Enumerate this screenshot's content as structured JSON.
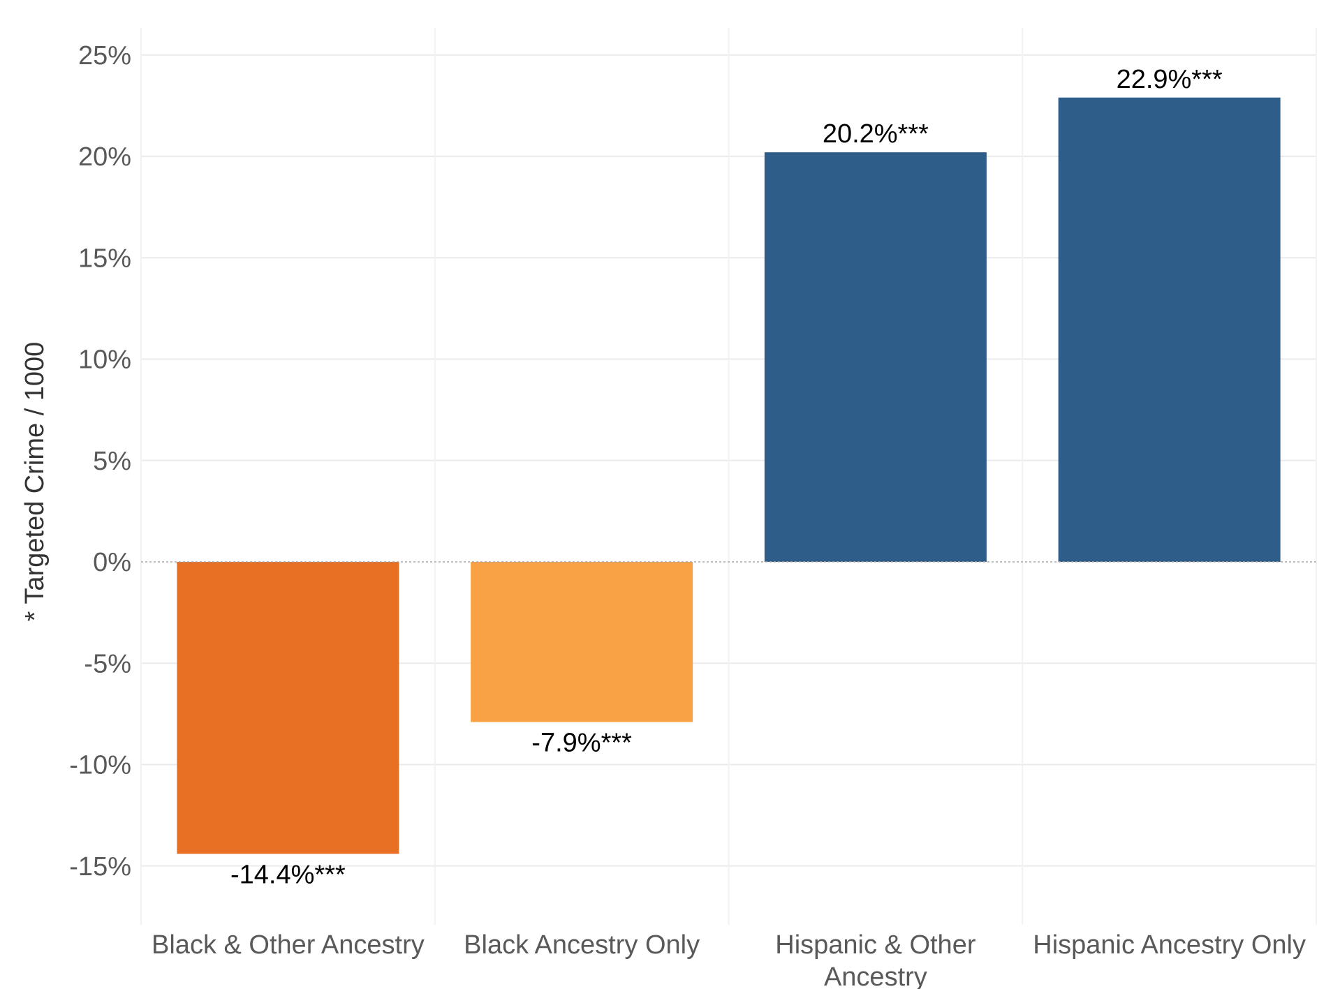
{
  "chart_data": {
    "type": "bar",
    "ylabel": "* Targeted Crime / 1000",
    "xlabel": "",
    "ylim": [
      -18,
      25
    ],
    "yticks": [
      -15,
      -10,
      -5,
      0,
      5,
      10,
      15,
      20,
      25
    ],
    "ytick_labels": [
      "-15%",
      "-10%",
      "-5%",
      "0%",
      "5%",
      "10%",
      "15%",
      "20%",
      "25%"
    ],
    "grid": true,
    "categories": [
      [
        "Black & Other Ancestry"
      ],
      [
        "Black Ancestry Only"
      ],
      [
        "Hispanic & Other",
        "Ancestry"
      ],
      [
        "Hispanic Ancestry Only"
      ]
    ],
    "values": [
      -14.4,
      -7.9,
      20.2,
      22.9
    ],
    "data_labels": [
      "-14.4%***",
      "-7.9%***",
      "20.2%***",
      "22.9%***"
    ],
    "colors": [
      "#E87025",
      "#F9A145",
      "#2E5D8A",
      "#2E5D8A"
    ]
  }
}
